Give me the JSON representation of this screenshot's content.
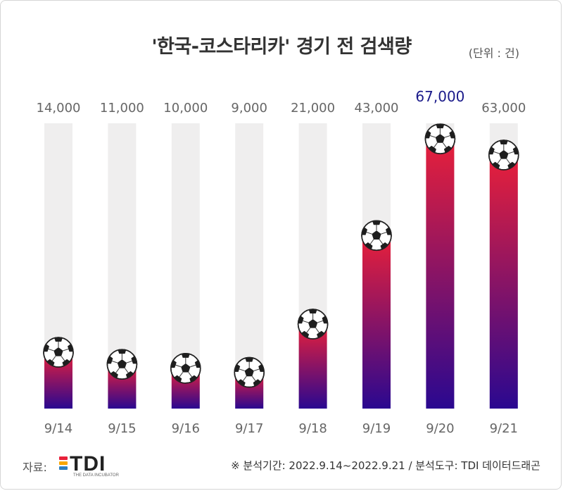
{
  "chart_data": {
    "type": "bar",
    "title": "'한국-코스타리카' 경기 전 검색량",
    "unit_label": "(단위 : 건)",
    "categories": [
      "9/14",
      "9/15",
      "9/16",
      "9/17",
      "9/18",
      "9/19",
      "9/20",
      "9/21"
    ],
    "values": [
      14000,
      11000,
      10000,
      9000,
      21000,
      43000,
      67000,
      63000
    ],
    "value_labels": [
      "14,000",
      "11,000",
      "10,000",
      "9,000",
      "21,000",
      "43,000",
      "67,000",
      "63,000"
    ],
    "highlight_index": 6,
    "ylim": [
      0,
      70000
    ],
    "grid": false,
    "colors": {
      "track": "#efeeee",
      "bar_top": "#e8203a",
      "bar_bottom": "#2a0890",
      "label": "#666666",
      "highlight_label": "#1a1a8a"
    },
    "marker_icon": "soccer-ball-icon"
  },
  "footer": {
    "source_label": "자료:",
    "logo_text": "TDI",
    "logo_sub": "THE DATA INCUBATOR",
    "logo_colors": [
      "#e8203a",
      "#f7a600",
      "#2c7fc1"
    ],
    "note": "※ 분석기간:  2022.9.14~2022.9.21 / 분석도구: TDI 데이터드래곤"
  }
}
